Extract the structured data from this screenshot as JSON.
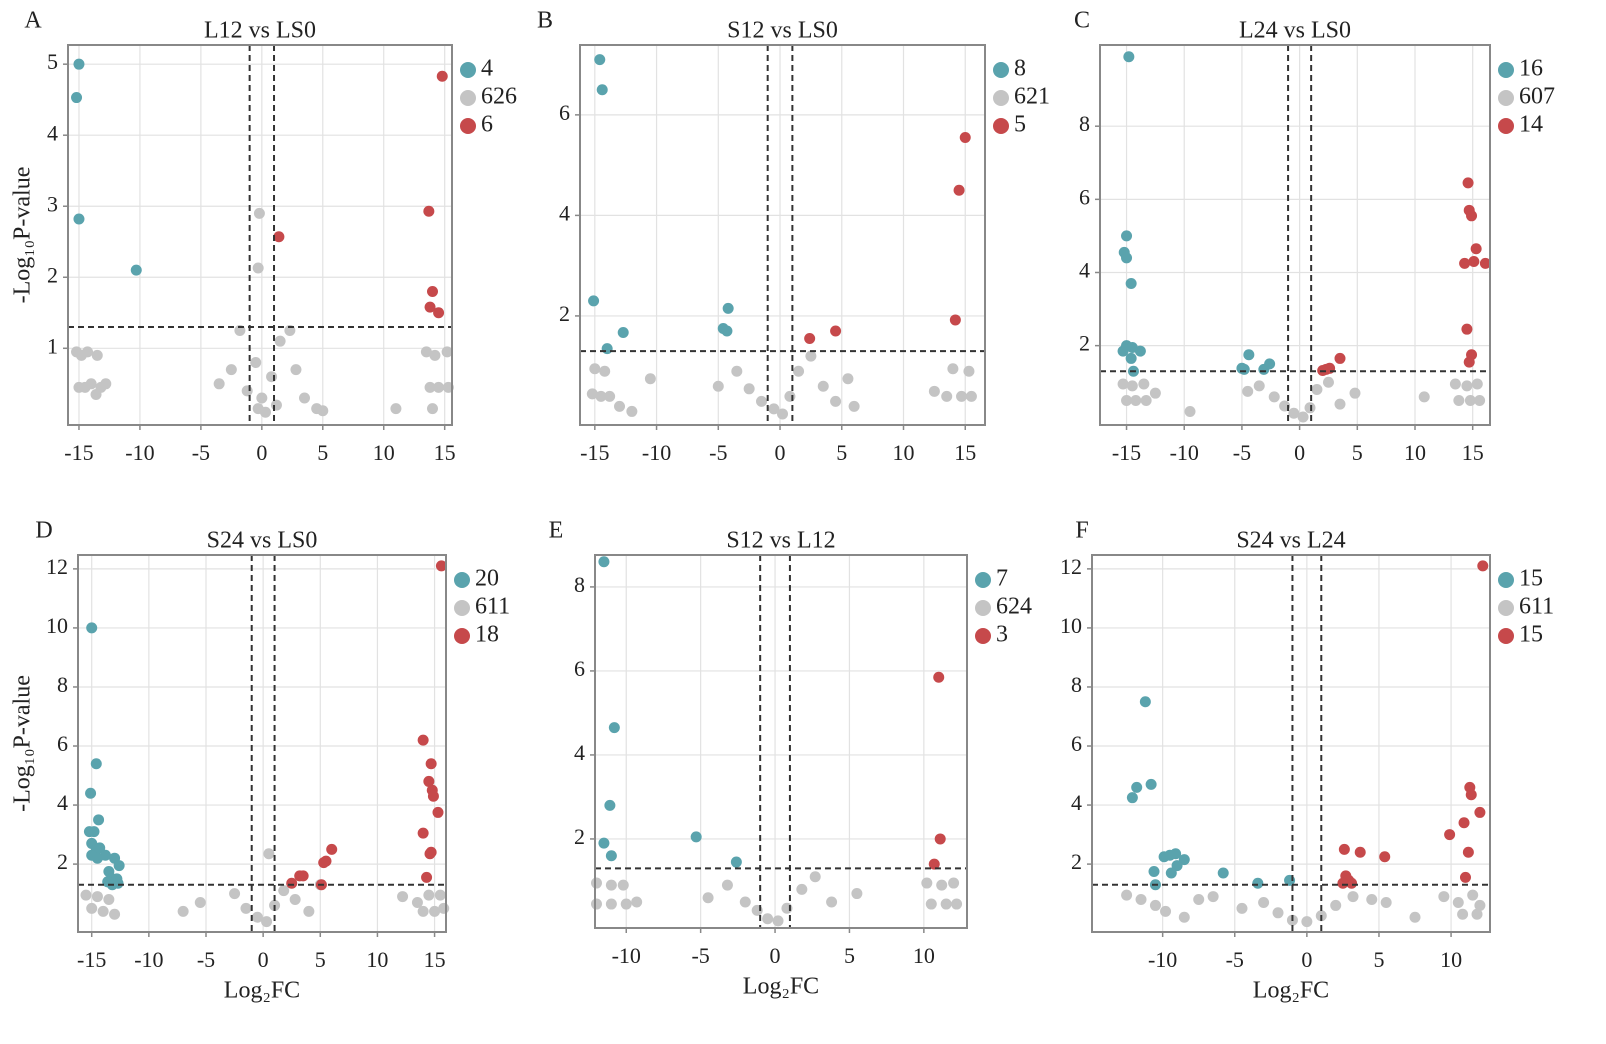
{
  "chart_data": [
    {
      "type": "scatter",
      "panel_label": "A",
      "title": "L12 vs LS0",
      "y_label": "-Log₁₀P-value",
      "xlim": [
        -15.9,
        15.6
      ],
      "ylim": [
        -0.08,
        5.27
      ],
      "xticks": [
        -15,
        -10,
        -5,
        0,
        5,
        10,
        15
      ],
      "yticks": [
        1,
        2,
        3,
        4,
        5
      ],
      "grid": true,
      "hline": 1.3,
      "vlines": [
        -1,
        1
      ],
      "series": [
        {
          "name": "4",
          "color": "#5aa3ad",
          "x": [
            -15,
            -15.2,
            -15,
            -10.3
          ],
          "y": [
            5.0,
            4.53,
            2.82,
            2.1
          ]
        },
        {
          "name": "626",
          "color": "#c4c4c4",
          "x": [
            -15.2,
            -14.8,
            -14.3,
            -13.5,
            -15,
            -14.5,
            -14,
            -13.2,
            -12.8,
            -13.6,
            -1.8,
            -2.5,
            -3.5,
            -1.2,
            -0.5,
            0,
            0.3,
            -0.3,
            0.8,
            1.5,
            2.3,
            2.8,
            3.5,
            4.5,
            5,
            1.2,
            11,
            13.5,
            14.2,
            15.2,
            13.8,
            14.5,
            15.3,
            14,
            -0.2,
            -0.3
          ],
          "y": [
            0.95,
            0.9,
            0.95,
            0.9,
            0.45,
            0.45,
            0.5,
            0.45,
            0.5,
            0.35,
            1.25,
            0.7,
            0.5,
            0.4,
            0.8,
            0.3,
            0.1,
            0.15,
            0.6,
            1.1,
            1.25,
            0.7,
            0.3,
            0.15,
            0.12,
            0.2,
            0.15,
            0.95,
            0.9,
            0.95,
            0.45,
            0.45,
            0.45,
            0.15,
            2.9,
            2.13
          ]
        },
        {
          "name": "6",
          "color": "#c6494b",
          "x": [
            14.8,
            13.7,
            1.4,
            14,
            13.8,
            14.5
          ],
          "y": [
            4.83,
            2.93,
            2.57,
            1.8,
            1.58,
            1.5
          ]
        }
      ]
    },
    {
      "type": "scatter",
      "panel_label": "B",
      "title": "S12 vs LS0",
      "xlim": [
        -16.2,
        16.6
      ],
      "ylim": [
        -0.17,
        7.39
      ],
      "xticks": [
        -15,
        -10,
        -5,
        0,
        5,
        10,
        15
      ],
      "yticks": [
        2,
        4,
        6
      ],
      "grid": true,
      "hline": 1.3,
      "vlines": [
        -1,
        1
      ],
      "series": [
        {
          "name": "8",
          "color": "#5aa3ad",
          "x": [
            -14.6,
            -14.4,
            -15.1,
            -12.7,
            -14,
            -4.2,
            -4.6,
            -4.3
          ],
          "y": [
            7.1,
            6.5,
            2.3,
            1.67,
            1.35,
            2.15,
            1.75,
            1.7
          ]
        },
        {
          "name": "621",
          "color": "#c4c4c4",
          "x": [
            -15,
            -14.2,
            -15.2,
            -14.5,
            -13.8,
            -13,
            -12,
            -10.5,
            -5,
            -3.5,
            -2.5,
            -1.5,
            -0.5,
            0.2,
            0.8,
            1.5,
            2.5,
            3.5,
            4.5,
            5.5,
            6,
            12.5,
            14,
            15.3,
            13.5,
            14.7,
            15.5
          ],
          "y": [
            0.95,
            0.9,
            0.45,
            0.4,
            0.4,
            0.2,
            0.1,
            0.75,
            0.6,
            0.9,
            0.55,
            0.3,
            0.15,
            0.05,
            0.4,
            0.9,
            1.2,
            0.6,
            0.3,
            0.75,
            0.2,
            0.5,
            0.95,
            0.9,
            0.4,
            0.4,
            0.4
          ]
        },
        {
          "name": "5",
          "color": "#c6494b",
          "x": [
            15,
            14.5,
            14.2,
            4.5,
            2.4
          ],
          "y": [
            5.55,
            4.5,
            1.92,
            1.7,
            1.55
          ]
        }
      ]
    },
    {
      "type": "scatter",
      "panel_label": "C",
      "title": "L24 vs LS0",
      "xlim": [
        -17.3,
        16.5
      ],
      "ylim": [
        -0.17,
        10.22
      ],
      "xticks": [
        -15,
        -10,
        -5,
        0,
        5,
        10,
        15
      ],
      "yticks": [
        2,
        4,
        6,
        8
      ],
      "grid": true,
      "hline": 1.3,
      "vlines": [
        -1,
        1
      ],
      "series": [
        {
          "name": "16",
          "color": "#5aa3ad",
          "x": [
            -14.8,
            -15,
            -15.2,
            -15,
            -14.6,
            -15.3,
            -15,
            -14.5,
            -13.8,
            -14.6,
            -14.4,
            -4.8,
            -5,
            -4.4,
            -3.1,
            -2.6
          ],
          "y": [
            9.9,
            5,
            4.55,
            4.4,
            3.7,
            1.85,
            2,
            1.95,
            1.85,
            1.65,
            1.3,
            1.35,
            1.38,
            1.75,
            1.35,
            1.5
          ]
        },
        {
          "name": "607",
          "color": "#c4c4c4",
          "x": [
            -15.3,
            -14.5,
            -13.5,
            -15,
            -14.2,
            -13.3,
            -12.5,
            -9.5,
            -4.5,
            -3.5,
            -2.2,
            -1.3,
            -0.5,
            0.3,
            0.9,
            1.5,
            2.5,
            3.5,
            4.8,
            10.8,
            13.5,
            14.5,
            15.4,
            13.8,
            14.8,
            15.6
          ],
          "y": [
            0.95,
            0.9,
            0.95,
            0.5,
            0.5,
            0.5,
            0.7,
            0.2,
            0.75,
            0.9,
            0.6,
            0.35,
            0.15,
            0.05,
            0.3,
            0.8,
            1.0,
            0.4,
            0.7,
            0.6,
            0.95,
            0.9,
            0.95,
            0.5,
            0.5,
            0.5
          ]
        },
        {
          "name": "14",
          "color": "#c6494b",
          "x": [
            14.6,
            14.7,
            14.9,
            15.3,
            15.1,
            14.3,
            16.1,
            14.5,
            14.9,
            14.7,
            3.5,
            2.3,
            2.6,
            2.0
          ],
          "y": [
            6.45,
            5.7,
            5.55,
            4.65,
            4.3,
            4.25,
            4.25,
            2.45,
            1.75,
            1.55,
            1.65,
            1.35,
            1.38,
            1.32
          ]
        }
      ]
    },
    {
      "type": "scatter",
      "panel_label": "D",
      "title": "S24 vs LS0",
      "y_label": "-Log₁₀P-value",
      "x_label": "Log₂FC",
      "xlim": [
        -16.2,
        16
      ],
      "ylim": [
        -0.3,
        12.47
      ],
      "xticks": [
        -15,
        -10,
        -5,
        0,
        5,
        10,
        15
      ],
      "yticks": [
        2,
        4,
        6,
        8,
        10,
        12
      ],
      "grid": true,
      "hline": 1.3,
      "vlines": [
        -1,
        1
      ],
      "series": [
        {
          "name": "20",
          "color": "#5aa3ad",
          "x": [
            -15,
            -14.6,
            -15.1,
            -14.4,
            -15.2,
            -14.8,
            -15,
            -14.6,
            -14.3,
            -13.8,
            -15,
            -14.5,
            -13,
            -12.6,
            -13.5,
            -13.2,
            -12.8,
            -13.6,
            -12.7,
            -13.2
          ],
          "y": [
            10,
            5.4,
            4.4,
            3.5,
            3.1,
            3.1,
            2.7,
            2.5,
            2.55,
            2.3,
            2.3,
            2.2,
            2.2,
            1.95,
            1.75,
            1.5,
            1.5,
            1.4,
            1.35,
            1.3
          ]
        },
        {
          "name": "611",
          "color": "#c4c4c4",
          "x": [
            -15.5,
            -14.5,
            -13.5,
            -15,
            -14,
            -13,
            -7,
            -5.5,
            -2.5,
            -1.5,
            -0.5,
            0.3,
            0.5,
            1,
            1.8,
            2.8,
            4,
            5,
            12.2,
            13.5,
            14.5,
            15.5,
            14,
            15,
            15.8
          ],
          "y": [
            0.95,
            0.9,
            0.8,
            0.5,
            0.4,
            0.3,
            0.4,
            0.7,
            1.0,
            0.5,
            0.2,
            0.05,
            2.35,
            0.6,
            1.1,
            0.8,
            0.4,
            1.3,
            0.9,
            0.7,
            0.95,
            0.95,
            0.4,
            0.4,
            0.5
          ]
        },
        {
          "name": "18",
          "color": "#c6494b",
          "x": [
            15.6,
            14,
            14.7,
            14.5,
            14.8,
            14.9,
            15.3,
            14,
            14.7,
            14.6,
            14.3,
            6,
            5.5,
            5.3,
            3.2,
            3.5,
            2.5,
            5.1
          ],
          "y": [
            12.1,
            6.2,
            5.4,
            4.8,
            4.5,
            4.3,
            3.75,
            3.05,
            2.4,
            2.35,
            1.55,
            2.5,
            2.1,
            2.05,
            1.6,
            1.6,
            1.35,
            1.3
          ]
        }
      ]
    },
    {
      "type": "scatter",
      "panel_label": "E",
      "title": "S12 vs L12",
      "x_label": "Log₂FC",
      "xlim": [
        -12.1,
        12.9
      ],
      "ylim": [
        -0.12,
        8.76
      ],
      "xticks": [
        -10,
        -5,
        0,
        5,
        10
      ],
      "yticks": [
        2,
        4,
        6,
        8
      ],
      "grid": true,
      "hline": 1.3,
      "vlines": [
        -1,
        1
      ],
      "series": [
        {
          "name": "7",
          "color": "#5aa3ad",
          "x": [
            -11.5,
            -10.8,
            -11.1,
            -11.5,
            -11,
            -5.3,
            -2.6
          ],
          "y": [
            8.6,
            4.65,
            2.8,
            1.9,
            1.6,
            2.05,
            1.45
          ]
        },
        {
          "name": "624",
          "color": "#c4c4c4",
          "x": [
            -12,
            -11,
            -10.2,
            -12,
            -11,
            -10,
            -9.3,
            -4.5,
            -3.2,
            -2,
            -1.2,
            -0.5,
            0.2,
            0.8,
            1.8,
            2.7,
            3.8,
            5.5,
            10.2,
            11.2,
            12,
            10.5,
            11.5,
            12.2
          ],
          "y": [
            0.95,
            0.9,
            0.9,
            0.45,
            0.45,
            0.45,
            0.5,
            0.6,
            0.9,
            0.5,
            0.3,
            0.1,
            0.05,
            0.35,
            0.8,
            1.1,
            0.5,
            0.7,
            0.95,
            0.9,
            0.95,
            0.45,
            0.45,
            0.45
          ]
        },
        {
          "name": "3",
          "color": "#c6494b",
          "x": [
            11,
            11.1,
            10.7
          ],
          "y": [
            5.85,
            2.0,
            1.4
          ]
        }
      ]
    },
    {
      "type": "scatter",
      "panel_label": "F",
      "title": "S24 vs L24",
      "x_label": "Log₂FC",
      "xlim": [
        -14.9,
        12.7
      ],
      "ylim": [
        -0.3,
        12.47
      ],
      "xticks": [
        -10,
        -5,
        0,
        5,
        10
      ],
      "yticks": [
        2,
        4,
        6,
        8,
        10,
        12
      ],
      "grid": true,
      "hline": 1.3,
      "vlines": [
        -1,
        1
      ],
      "series": [
        {
          "name": "15",
          "color": "#5aa3ad",
          "x": [
            -11.2,
            -11.8,
            -12.1,
            -10.8,
            -10.6,
            -10.5,
            -9.9,
            -9.5,
            -9.1,
            -8.5,
            -9,
            -9.4,
            -5.8,
            -3.4,
            -1.2
          ],
          "y": [
            7.5,
            4.6,
            4.25,
            4.7,
            1.75,
            1.3,
            2.25,
            2.3,
            2.35,
            2.15,
            1.95,
            1.7,
            1.7,
            1.35,
            1.45
          ]
        },
        {
          "name": "611",
          "color": "#c4c4c4",
          "x": [
            -12.5,
            -11.5,
            -10.5,
            -9.8,
            -8.5,
            -7.5,
            -6.5,
            -4.5,
            -3,
            -2,
            -1,
            0,
            1,
            2,
            3.2,
            4.5,
            5.5,
            7.5,
            9.5,
            10.5,
            11.5,
            12,
            10.8,
            11.8
          ],
          "y": [
            0.95,
            0.8,
            0.6,
            0.4,
            0.2,
            0.8,
            0.9,
            0.5,
            0.7,
            0.35,
            0.1,
            0.05,
            0.25,
            0.6,
            0.9,
            0.8,
            0.7,
            0.2,
            0.9,
            0.7,
            0.95,
            0.6,
            0.3,
            0.3
          ]
        },
        {
          "name": "15",
          "color": "#c6494b",
          "x": [
            12.2,
            11.3,
            11.4,
            12,
            10.9,
            9.9,
            11.2,
            11,
            5.4,
            3.7,
            2.6,
            2.7,
            2.9,
            3.1,
            2.5
          ],
          "y": [
            12.1,
            4.6,
            4.35,
            3.75,
            3.4,
            3,
            2.4,
            1.55,
            2.25,
            2.4,
            2.5,
            1.6,
            1.45,
            1.35,
            1.35
          ]
        }
      ]
    }
  ]
}
